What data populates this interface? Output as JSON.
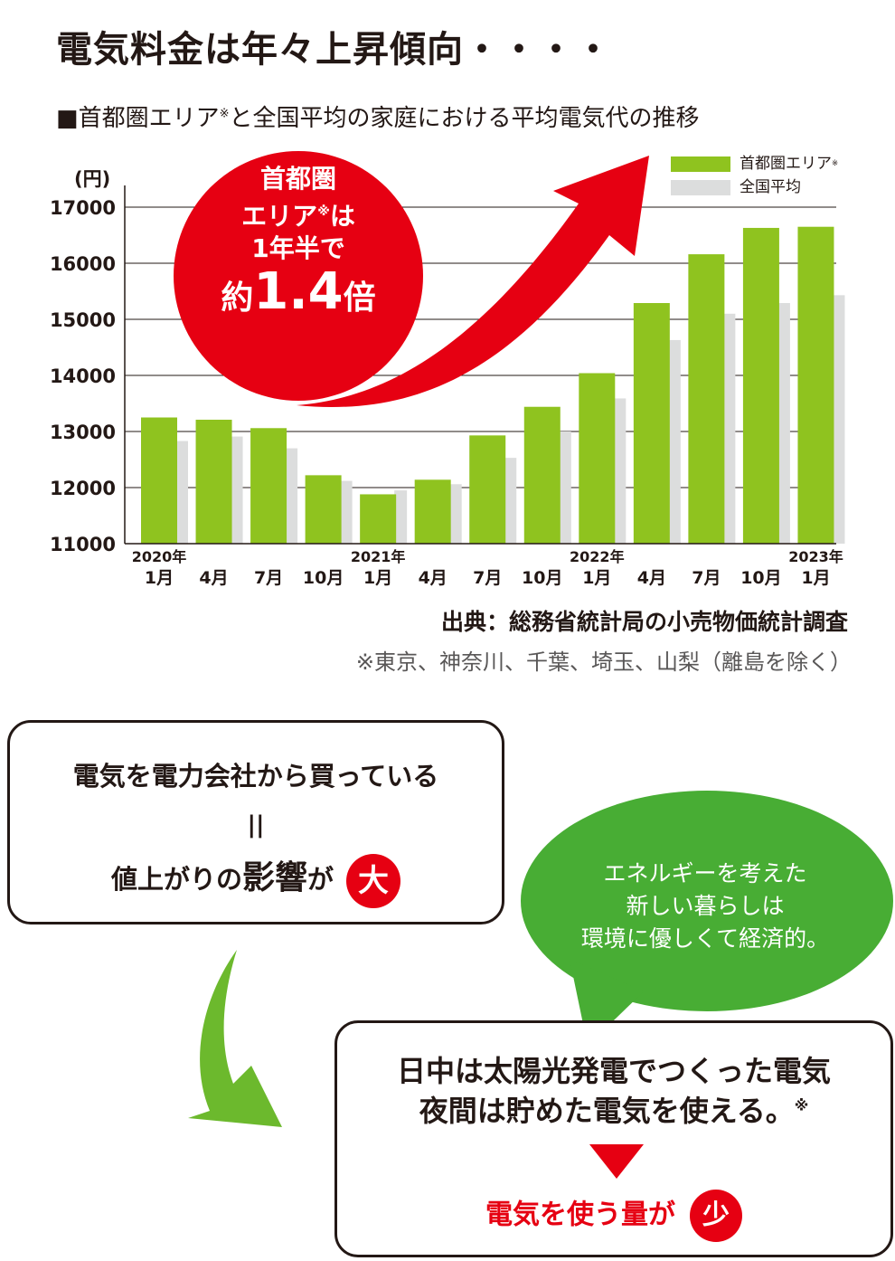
{
  "header": {
    "title": "電気料金は年々上昇傾向・・・・",
    "subtitle_main": "■首都圏エリア",
    "subtitle_mark": "※",
    "subtitle_rest": "と全国平均の家庭における平均電気代の推移"
  },
  "callout": {
    "line1": "首都圏",
    "line2_a": "エリア",
    "line2_mark": "※",
    "line2_b": "は",
    "line3": "1年半で",
    "line4_a": "約",
    "line4_num": "1.4",
    "line4_b": "倍"
  },
  "colors": {
    "capital": "#8fc31f",
    "national": "#dcdddd",
    "accent_red": "#e60012",
    "green_bubble": "#48ad34",
    "green_arrow": "#6cb92d"
  },
  "chart_data": {
    "type": "bar",
    "y_unit_label": "(円)",
    "ylim": [
      11000,
      17000
    ],
    "yticks": [
      11000,
      12000,
      13000,
      14000,
      15000,
      16000,
      17000
    ],
    "grid": true,
    "legend_position": "top-right",
    "categories": [
      {
        "year": "2020年",
        "month": "1月"
      },
      {
        "year": "",
        "month": "4月"
      },
      {
        "year": "",
        "month": "7月"
      },
      {
        "year": "",
        "month": "10月"
      },
      {
        "year": "2021年",
        "month": "1月"
      },
      {
        "year": "",
        "month": "4月"
      },
      {
        "year": "",
        "month": "7月"
      },
      {
        "year": "",
        "month": "10月"
      },
      {
        "year": "2022年",
        "month": "1月"
      },
      {
        "year": "",
        "month": "4月"
      },
      {
        "year": "",
        "month": "7月"
      },
      {
        "year": "",
        "month": "10月"
      },
      {
        "year": "2023年",
        "month": "1月"
      }
    ],
    "series": [
      {
        "name": "首都圏エリア",
        "name_mark": "※",
        "color": "#8fc31f",
        "values": [
          13250,
          13210,
          13060,
          12220,
          11880,
          12140,
          12930,
          13440,
          14040,
          15290,
          16160,
          16630,
          16650
        ]
      },
      {
        "name": "全国平均",
        "name_mark": "",
        "color": "#dcdddd",
        "values": [
          12830,
          12910,
          12700,
          12120,
          11950,
          12060,
          12530,
          13000,
          13590,
          14630,
          15100,
          15290,
          15430
        ]
      }
    ]
  },
  "source": "出典：総務省統計局の小売物価統計調査",
  "note": "※東京、神奈川、千葉、埼玉、山梨（離島を除く）",
  "box1": {
    "line1": "電気を電力会社から買っている",
    "equals": "||",
    "line2_a": "値上がりの",
    "line2_big": "影響",
    "line2_b": "が",
    "badge": "大"
  },
  "bubble": {
    "line1": "エネルギーを考えた",
    "line2": "新しい暮らしは",
    "line3": "環境に優しくて経済的。"
  },
  "box2": {
    "line1": "日中は太陽光発電でつくった電気",
    "line2": "夜間は貯めた電気を使える。",
    "line2_mark": "※",
    "result": "電気を使う量が",
    "badge": "少"
  }
}
